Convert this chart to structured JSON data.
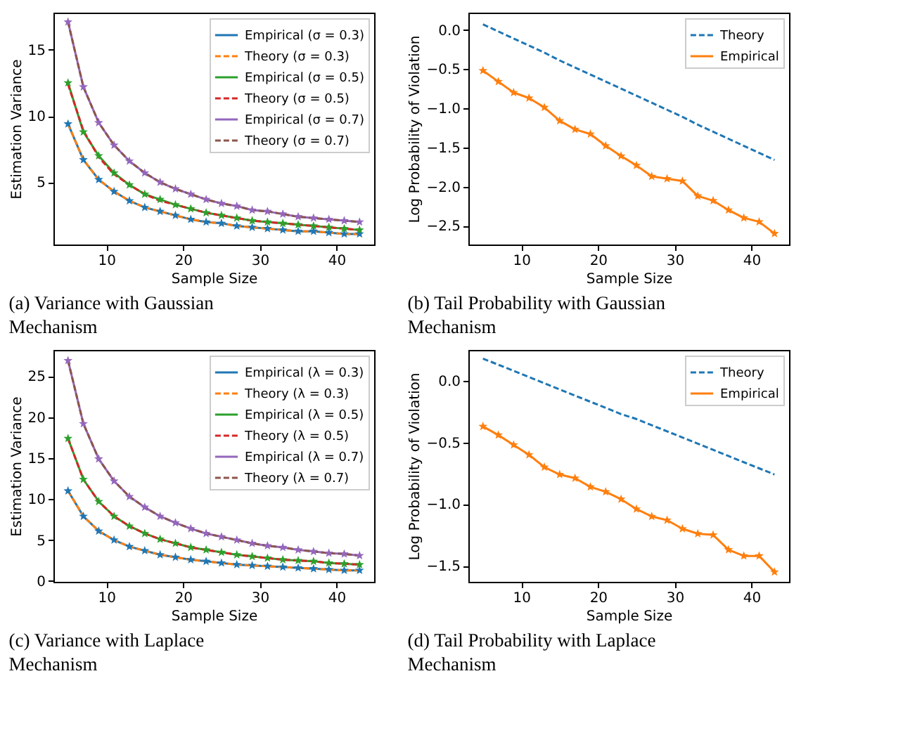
{
  "chart_data": [
    {
      "type": "line",
      "title": "(a) Variance with Gaussian Mechanism",
      "xlabel": "Sample Size",
      "ylabel": "Estimation Variance",
      "x": [
        5,
        7,
        9,
        11,
        13,
        15,
        17,
        19,
        21,
        23,
        25,
        27,
        29,
        31,
        33,
        35,
        37,
        39,
        41,
        43
      ],
      "xlim": [
        3.1,
        44.9
      ],
      "xticks": [
        10,
        20,
        30,
        40
      ],
      "ylim": [
        0.3,
        17.8
      ],
      "yticks": [
        5,
        10,
        15
      ],
      "legend": "top right",
      "series": [
        {
          "name": "Empirical (σ = 0.3)",
          "color": "#1f77b4",
          "marker": "star",
          "line_style": "solid",
          "values": [
            9.4,
            6.7,
            5.2,
            4.3,
            3.6,
            3.1,
            2.8,
            2.5,
            2.2,
            2.0,
            1.9,
            1.7,
            1.6,
            1.5,
            1.4,
            1.3,
            1.3,
            1.2,
            1.1,
            1.1
          ]
        },
        {
          "name": "Theory (σ = 0.3)",
          "color": "#ff7f0e",
          "line_style": "dashed",
          "values": [
            9.4,
            6.7,
            5.2,
            4.3,
            3.6,
            3.1,
            2.8,
            2.5,
            2.2,
            2.0,
            1.9,
            1.7,
            1.6,
            1.5,
            1.4,
            1.3,
            1.3,
            1.2,
            1.1,
            1.1
          ]
        },
        {
          "name": "Empirical (σ = 0.5)",
          "color": "#2ca02c",
          "marker": "star",
          "line_style": "solid",
          "values": [
            12.5,
            8.8,
            7.0,
            5.7,
            4.8,
            4.1,
            3.7,
            3.3,
            3.0,
            2.7,
            2.5,
            2.3,
            2.1,
            2.0,
            1.9,
            1.8,
            1.7,
            1.6,
            1.5,
            1.4
          ]
        },
        {
          "name": "Theory (σ = 0.5)",
          "color": "#d62728",
          "line_style": "dashed",
          "values": [
            12.4,
            8.9,
            6.9,
            5.6,
            4.8,
            4.1,
            3.6,
            3.3,
            3.0,
            2.7,
            2.5,
            2.3,
            2.1,
            2.0,
            1.9,
            1.8,
            1.7,
            1.6,
            1.5,
            1.4
          ]
        },
        {
          "name": "Empirical (σ = 0.7)",
          "color": "#9467bd",
          "marker": "star",
          "line_style": "solid",
          "values": [
            17.1,
            12.2,
            9.5,
            7.8,
            6.6,
            5.7,
            5.0,
            4.5,
            4.1,
            3.7,
            3.4,
            3.2,
            2.9,
            2.8,
            2.6,
            2.4,
            2.3,
            2.2,
            2.1,
            2.0
          ]
        },
        {
          "name": "Theory (σ = 0.7)",
          "color": "#8c564b",
          "line_style": "dashed",
          "values": [
            17.1,
            12.2,
            9.5,
            7.8,
            6.6,
            5.7,
            5.0,
            4.5,
            4.1,
            3.7,
            3.4,
            3.2,
            2.9,
            2.8,
            2.6,
            2.4,
            2.3,
            2.2,
            2.1,
            2.0
          ]
        }
      ]
    },
    {
      "type": "line",
      "title": "(b) Tail Probability with Gaussian Mechanism",
      "xlabel": "Sample Size",
      "ylabel": "Log Probability of Violation",
      "x": [
        5,
        7,
        9,
        11,
        13,
        15,
        17,
        19,
        21,
        23,
        25,
        27,
        29,
        31,
        33,
        35,
        37,
        39,
        41,
        43
      ],
      "xlim": [
        3.1,
        44.9
      ],
      "xticks": [
        10,
        20,
        30,
        40
      ],
      "ylim": [
        -2.74,
        0.22
      ],
      "yticks": [
        {
          "value": 0,
          "label": "0.0"
        },
        {
          "value": -0.5,
          "label": "−0.5"
        },
        {
          "value": -1,
          "label": "−1.0"
        },
        {
          "value": -1.5,
          "label": "−1.5"
        },
        {
          "value": -2,
          "label": "−2.0"
        },
        {
          "value": -2.5,
          "label": "−2.5"
        }
      ],
      "legend": "top right",
      "series": [
        {
          "name": "Theory",
          "color": "#1f77b4",
          "line_style": "dashed",
          "values": [
            0.07,
            -0.02,
            -0.11,
            -0.2,
            -0.29,
            -0.39,
            -0.48,
            -0.57,
            -0.66,
            -0.75,
            -0.84,
            -0.93,
            -1.02,
            -1.11,
            -1.21,
            -1.3,
            -1.39,
            -1.48,
            -1.57,
            -1.66
          ]
        },
        {
          "name": "Empirical",
          "color": "#ff7f0e",
          "marker": "star",
          "line_style": "solid",
          "values": [
            -0.52,
            -0.66,
            -0.8,
            -0.87,
            -0.99,
            -1.16,
            -1.27,
            -1.33,
            -1.48,
            -1.61,
            -1.73,
            -1.87,
            -1.9,
            -1.93,
            -2.12,
            -2.18,
            -2.3,
            -2.4,
            -2.45,
            -2.6
          ]
        }
      ]
    },
    {
      "type": "line",
      "title": "(c) Variance with Laplace Mechanism",
      "xlabel": "Sample Size",
      "ylabel": "Estimation Variance",
      "x": [
        5,
        7,
        9,
        11,
        13,
        15,
        17,
        19,
        21,
        23,
        25,
        27,
        29,
        31,
        33,
        35,
        37,
        39,
        41,
        43
      ],
      "xlim": [
        3.1,
        44.9
      ],
      "xticks": [
        10,
        20,
        30,
        40
      ],
      "ylim": [
        -0.1,
        28.2
      ],
      "yticks": [
        0,
        5,
        10,
        15,
        20,
        25
      ],
      "legend": "top right",
      "series": [
        {
          "name": "Empirical (λ = 0.3)",
          "color": "#1f77b4",
          "marker": "star",
          "line_style": "solid",
          "values": [
            11.0,
            7.9,
            6.1,
            5.0,
            4.2,
            3.7,
            3.2,
            2.9,
            2.6,
            2.4,
            2.2,
            2.0,
            1.9,
            1.8,
            1.7,
            1.6,
            1.5,
            1.4,
            1.3,
            1.3
          ]
        },
        {
          "name": "Theory (λ = 0.3)",
          "color": "#ff7f0e",
          "line_style": "dashed",
          "values": [
            11.0,
            7.9,
            6.1,
            5.0,
            4.2,
            3.7,
            3.2,
            2.9,
            2.6,
            2.4,
            2.2,
            2.0,
            1.9,
            1.8,
            1.7,
            1.6,
            1.5,
            1.4,
            1.3,
            1.3
          ]
        },
        {
          "name": "Empirical (λ = 0.5)",
          "color": "#2ca02c",
          "marker": "star",
          "line_style": "solid",
          "values": [
            17.4,
            12.4,
            9.7,
            7.9,
            6.7,
            5.8,
            5.1,
            4.6,
            4.1,
            3.8,
            3.5,
            3.2,
            3.0,
            2.8,
            2.6,
            2.5,
            2.4,
            2.2,
            2.1,
            2.0
          ]
        },
        {
          "name": "Theory (λ = 0.5)",
          "color": "#d62728",
          "line_style": "dashed",
          "values": [
            17.4,
            12.4,
            9.7,
            7.9,
            6.7,
            5.8,
            5.1,
            4.6,
            4.1,
            3.8,
            3.5,
            3.2,
            3.0,
            2.8,
            2.6,
            2.5,
            2.4,
            2.2,
            2.1,
            2.0
          ]
        },
        {
          "name": "Empirical (λ = 0.7)",
          "color": "#9467bd",
          "marker": "star",
          "line_style": "solid",
          "values": [
            26.9,
            19.2,
            14.9,
            12.2,
            10.3,
            9.0,
            7.9,
            7.1,
            6.4,
            5.8,
            5.4,
            5.0,
            4.6,
            4.3,
            4.1,
            3.8,
            3.6,
            3.4,
            3.3,
            3.1
          ]
        },
        {
          "name": "Theory (λ = 0.7)",
          "color": "#8c564b",
          "line_style": "dashed",
          "values": [
            26.9,
            19.2,
            14.9,
            12.2,
            10.3,
            9.0,
            7.9,
            7.1,
            6.4,
            5.8,
            5.4,
            5.0,
            4.6,
            4.3,
            4.1,
            3.8,
            3.6,
            3.4,
            3.3,
            3.1
          ]
        }
      ]
    },
    {
      "type": "line",
      "title": "(d) Tail Probability with Laplace Mechanism",
      "xlabel": "Sample Size",
      "ylabel": "Log Probability of Violation",
      "x": [
        5,
        7,
        9,
        11,
        13,
        15,
        17,
        19,
        21,
        23,
        25,
        27,
        29,
        31,
        33,
        35,
        37,
        39,
        41,
        43
      ],
      "xlim": [
        3.1,
        44.9
      ],
      "xticks": [
        10,
        20,
        30,
        40
      ],
      "ylim": [
        -1.63,
        0.25
      ],
      "yticks": [
        {
          "value": 0,
          "label": "0.0"
        },
        {
          "value": -0.5,
          "label": "−0.5"
        },
        {
          "value": -1,
          "label": "−1.0"
        },
        {
          "value": -1.5,
          "label": "−1.5"
        }
      ],
      "legend": "top right",
      "series": [
        {
          "name": "Theory",
          "color": "#1f77b4",
          "line_style": "dashed",
          "values": [
            0.18,
            0.13,
            0.08,
            0.03,
            -0.02,
            -0.07,
            -0.12,
            -0.17,
            -0.22,
            -0.27,
            -0.31,
            -0.36,
            -0.41,
            -0.46,
            -0.51,
            -0.56,
            -0.61,
            -0.66,
            -0.71,
            -0.76
          ]
        },
        {
          "name": "Empirical",
          "color": "#ff7f0e",
          "marker": "star",
          "line_style": "solid",
          "values": [
            -0.37,
            -0.44,
            -0.52,
            -0.6,
            -0.7,
            -0.76,
            -0.79,
            -0.86,
            -0.9,
            -0.96,
            -1.04,
            -1.1,
            -1.13,
            -1.2,
            -1.24,
            -1.25,
            -1.37,
            -1.42,
            -1.42,
            -1.55
          ]
        }
      ]
    }
  ]
}
